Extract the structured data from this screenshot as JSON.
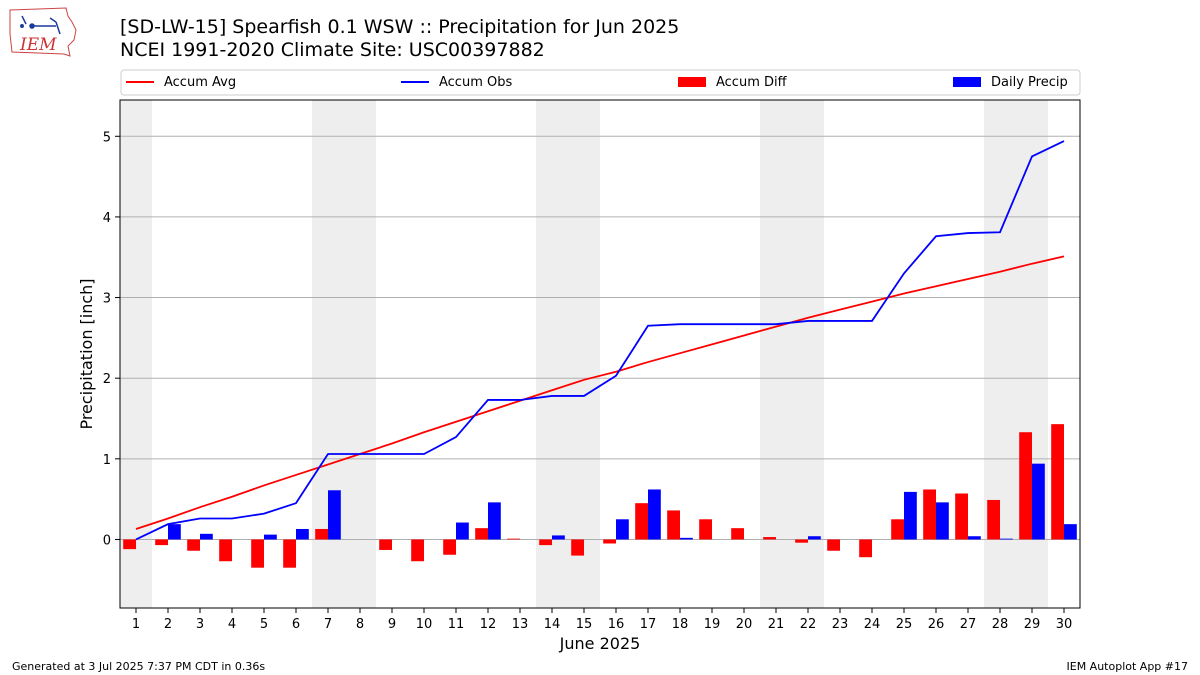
{
  "header": {
    "title_line1": "[SD-LW-15] Spearfish 0.1 WSW :: Precipitation for Jun 2025",
    "title_line2": "NCEI 1991-2020 Climate Site: USC00397882"
  },
  "logo": {
    "text": "IEM",
    "icon": "iowa-state-outline-logo"
  },
  "footer": {
    "left": "Generated at 3 Jul 2025 7:37 PM CDT in 0.36s",
    "right": "IEM Autoplot App #17"
  },
  "colors": {
    "avg": "#ff0000",
    "obs": "#0000ff",
    "diff": "#ff0000",
    "daily": "#0000ff",
    "weekend_shade": "#eeeeee",
    "grid": "#b0b0b0"
  },
  "chart_data": {
    "type": "bar",
    "xlabel": "June 2025",
    "ylabel": "Precipitation [inch]",
    "xlim": [
      0.5,
      30.5
    ],
    "ylim": [
      -0.85,
      5.45
    ],
    "yticks": [
      0,
      1,
      2,
      3,
      4,
      5
    ],
    "grid": "horizontal",
    "legend_position": "top",
    "weekend_shaded_days": [
      1,
      7,
      8,
      14,
      15,
      21,
      22,
      28,
      29
    ],
    "categories": [
      1,
      2,
      3,
      4,
      5,
      6,
      7,
      8,
      9,
      10,
      11,
      12,
      13,
      14,
      15,
      16,
      17,
      18,
      19,
      20,
      21,
      22,
      23,
      24,
      25,
      26,
      27,
      28,
      29,
      30
    ],
    "lines": [
      {
        "name": "Accum Avg",
        "values": [
          0.13,
          0.26,
          0.4,
          0.53,
          0.67,
          0.8,
          0.93,
          1.06,
          1.19,
          1.33,
          1.46,
          1.59,
          1.72,
          1.85,
          1.98,
          2.08,
          2.2,
          2.31,
          2.42,
          2.53,
          2.64,
          2.75,
          2.85,
          2.95,
          3.05,
          3.14,
          3.23,
          3.32,
          3.42,
          3.51
        ]
      },
      {
        "name": "Accum Obs",
        "values": [
          0.0,
          0.19,
          0.26,
          0.26,
          0.32,
          0.45,
          1.06,
          1.06,
          1.06,
          1.06,
          1.27,
          1.73,
          1.73,
          1.78,
          1.78,
          2.03,
          2.65,
          2.67,
          2.67,
          2.67,
          2.67,
          2.71,
          2.71,
          2.71,
          3.3,
          3.76,
          3.8,
          3.81,
          4.75,
          4.94
        ]
      }
    ],
    "series": [
      {
        "name": "Accum Diff",
        "values": [
          -0.12,
          -0.07,
          -0.14,
          -0.27,
          -0.35,
          -0.35,
          0.13,
          0.0,
          -0.13,
          -0.27,
          -0.19,
          0.14,
          0.01,
          -0.07,
          -0.2,
          -0.05,
          0.45,
          0.36,
          0.25,
          0.14,
          0.03,
          -0.04,
          -0.14,
          -0.22,
          0.25,
          0.62,
          0.57,
          0.49,
          1.33,
          1.43
        ]
      },
      {
        "name": "Daily Precip",
        "values": [
          0.0,
          0.19,
          0.07,
          0.0,
          0.06,
          0.13,
          0.61,
          0.0,
          0.0,
          0.0,
          0.21,
          0.46,
          0.0,
          0.05,
          0.0,
          0.25,
          0.62,
          0.02,
          0.0,
          0.0,
          0.0,
          0.04,
          0.0,
          0.0,
          0.59,
          0.46,
          0.04,
          0.01,
          0.94,
          0.19
        ]
      }
    ]
  }
}
